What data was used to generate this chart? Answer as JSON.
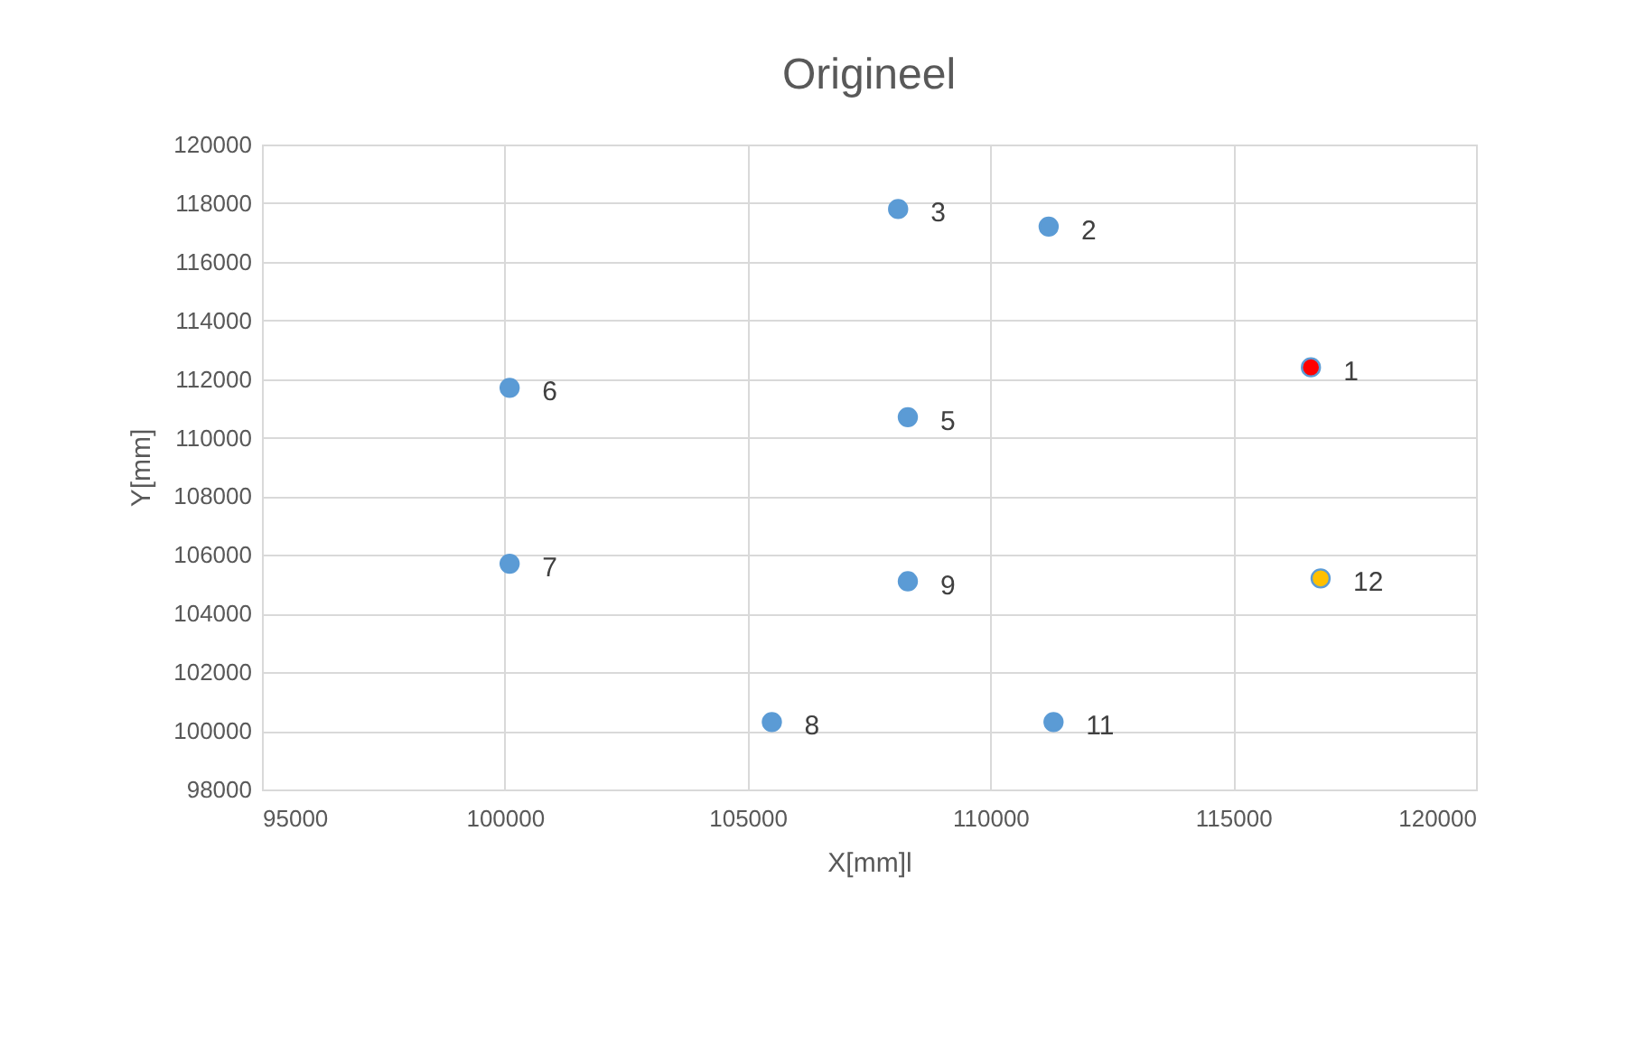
{
  "chart_data": {
    "type": "scatter",
    "title": "Origineel",
    "xlabel": "X[mm]l",
    "ylabel": "Y[mm]",
    "x": [
      116600,
      111200,
      108100,
      108300,
      100100,
      100100,
      105500,
      108300,
      111300,
      116800
    ],
    "values": [
      112400,
      117200,
      117800,
      110700,
      111700,
      105700,
      100300,
      105100,
      100300,
      105200
    ],
    "colors": [
      "#ff0000",
      "#5b9bd5",
      "#5b9bd5",
      "#5b9bd5",
      "#5b9bd5",
      "#5b9bd5",
      "#5b9bd5",
      "#5b9bd5",
      "#5b9bd5",
      "#ffc000"
    ],
    "marker": "circle",
    "xlim": [
      95000,
      120000
    ],
    "ylim": [
      98000,
      120000
    ],
    "xticks": [
      95000,
      100000,
      105000,
      110000,
      115000,
      120000
    ],
    "yticks": [
      98000,
      100000,
      102000,
      104000,
      106000,
      108000,
      110000,
      112000,
      114000,
      116000,
      118000,
      120000
    ],
    "grid": true,
    "annotations": [
      {
        "text": "1",
        "x": 116600,
        "y": 112400
      },
      {
        "text": "2",
        "x": 111200,
        "y": 117200
      },
      {
        "text": "3",
        "x": 108100,
        "y": 117800
      },
      {
        "text": "5",
        "x": 108300,
        "y": 110700
      },
      {
        "text": "6",
        "x": 100100,
        "y": 111700
      },
      {
        "text": "7",
        "x": 100100,
        "y": 105700
      },
      {
        "text": "8",
        "x": 105500,
        "y": 100300
      },
      {
        "text": "9",
        "x": 108300,
        "y": 105100
      },
      {
        "text": "11",
        "x": 111300,
        "y": 100300
      },
      {
        "text": "12",
        "x": 116800,
        "y": 105200
      }
    ]
  }
}
